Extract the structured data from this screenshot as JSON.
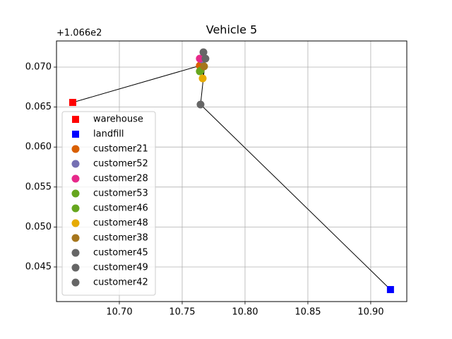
{
  "chart_data": {
    "type": "scatter",
    "title": "Vehicle 5",
    "y_offset_label": "+1.066e2",
    "xlim": [
      10.65,
      10.9287
    ],
    "ylim": [
      0.04067,
      0.07327
    ],
    "xticks": [
      {
        "value": 10.7,
        "label": "10.70"
      },
      {
        "value": 10.75,
        "label": "10.75"
      },
      {
        "value": 10.8,
        "label": "10.80"
      },
      {
        "value": 10.85,
        "label": "10.85"
      },
      {
        "value": 10.9,
        "label": "10.90"
      }
    ],
    "yticks": [
      {
        "value": 0.045,
        "label": "0.045"
      },
      {
        "value": 0.05,
        "label": "0.050"
      },
      {
        "value": 0.055,
        "label": "0.055"
      },
      {
        "value": 0.06,
        "label": "0.060"
      },
      {
        "value": 0.065,
        "label": "0.065"
      },
      {
        "value": 0.07,
        "label": "0.070"
      }
    ],
    "grid": true,
    "legend": "lower left",
    "series": [
      {
        "name": "warehouse",
        "color": "#ff0000",
        "marker": "square",
        "x": [
          10.6629
        ],
        "values": [
          0.06558
        ]
      },
      {
        "name": "landfill",
        "color": "#0000ff",
        "marker": "square",
        "x": [
          10.9157
        ],
        "values": [
          0.04217
        ]
      },
      {
        "name": "customer21",
        "color": "#d95f02",
        "marker": "circle",
        "x": [
          10.764
        ],
        "values": [
          0.07018
        ]
      },
      {
        "name": "customer52",
        "color": "#7570b3",
        "marker": "circle",
        "x": [
          10.7652
        ],
        "values": [
          0.07097
        ]
      },
      {
        "name": "customer28",
        "color": "#e7298a",
        "marker": "circle",
        "x": [
          10.764
        ],
        "values": [
          0.07106
        ]
      },
      {
        "name": "customer53",
        "color": "#66a61e",
        "marker": "circle",
        "x": [
          10.764
        ],
        "values": [
          0.06947
        ]
      },
      {
        "name": "customer46",
        "color": "#66a61e",
        "marker": "circle",
        "x": [
          10.7646
        ],
        "values": [
          0.06956
        ]
      },
      {
        "name": "customer48",
        "color": "#e6ab02",
        "marker": "circle",
        "x": [
          10.7663
        ],
        "values": [
          0.06859
        ]
      },
      {
        "name": "customer38",
        "color": "#a6761d",
        "marker": "circle",
        "x": [
          10.7674
        ],
        "values": [
          0.07009
        ]
      },
      {
        "name": "customer45",
        "color": "#666666",
        "marker": "circle",
        "x": [
          10.7669
        ],
        "values": [
          0.07186
        ]
      },
      {
        "name": "customer49",
        "color": "#666666",
        "marker": "circle",
        "x": [
          10.7685
        ],
        "values": [
          0.07106
        ]
      },
      {
        "name": "customer42",
        "color": "#666666",
        "marker": "circle",
        "x": [
          10.7646
        ],
        "values": [
          0.06532
        ]
      }
    ]
  }
}
